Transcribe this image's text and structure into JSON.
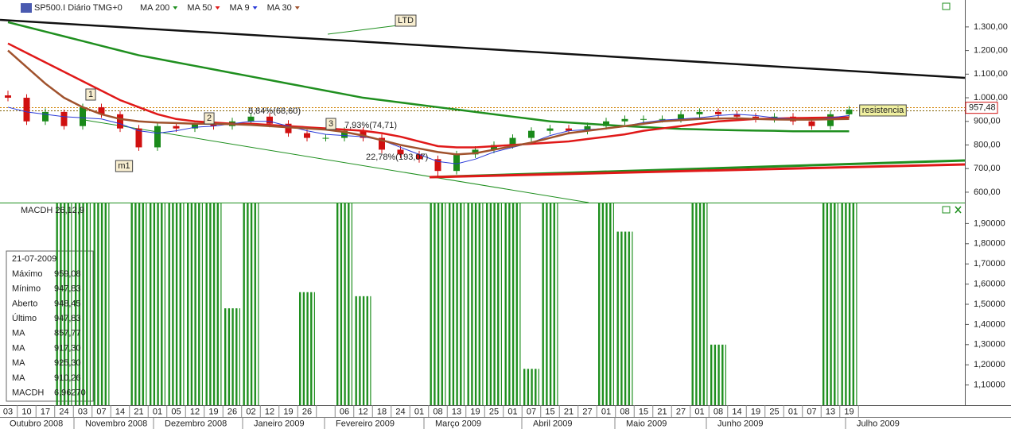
{
  "chart_data": [
    {
      "type": "candlestick",
      "title": "SP500.I Diário TMG+0",
      "grid": false,
      "categories": [
        "03",
        "10",
        "17",
        "24",
        "03",
        "07",
        "14",
        "21",
        "01",
        "05",
        "12",
        "19",
        "26",
        "02",
        "12",
        "19",
        "26",
        null,
        "06",
        "12",
        "18",
        "24",
        "01",
        "08",
        "13",
        "19",
        "25",
        "01",
        "07",
        "15",
        "21",
        "27",
        "01",
        "08",
        "15",
        "21",
        "27",
        "01",
        "08",
        "14",
        "19",
        "25",
        "01",
        "07",
        "13",
        "19"
      ],
      "months": [
        "Outubro 2008",
        "Novembro 2008",
        "Dezembro 2008",
        "Janeiro 2009",
        "Fevereiro 2009",
        "Março 2009",
        "Abril 2009",
        "Maio 2009",
        "Junho 2009",
        "Julho 2009"
      ],
      "open": [
        1010,
        1000,
        900,
        940,
        880,
        960,
        930,
        870,
        790,
        880,
        870,
        890,
        880,
        900,
        920,
        890,
        850,
        830,
        830,
        860,
        830,
        780,
        760,
        740,
        690,
        760,
        780,
        800,
        830,
        860,
        870,
        860,
        880,
        900,
        910,
        910,
        910,
        930,
        940,
        930,
        920,
        910,
        920,
        900,
        880,
        930
      ],
      "high": [
        1030,
        1015,
        955,
        950,
        975,
        975,
        945,
        885,
        895,
        895,
        895,
        905,
        915,
        935,
        935,
        905,
        865,
        845,
        875,
        875,
        845,
        795,
        775,
        755,
        775,
        795,
        815,
        845,
        875,
        885,
        885,
        895,
        915,
        925,
        925,
        925,
        945,
        955,
        955,
        945,
        935,
        935,
        935,
        915,
        945,
        965
      ],
      "low": [
        985,
        885,
        885,
        865,
        865,
        915,
        855,
        775,
        775,
        855,
        855,
        865,
        865,
        885,
        875,
        835,
        815,
        815,
        815,
        815,
        765,
        745,
        725,
        665,
        675,
        745,
        765,
        785,
        815,
        845,
        845,
        845,
        865,
        885,
        895,
        895,
        895,
        915,
        915,
        905,
        895,
        895,
        885,
        865,
        865,
        915
      ],
      "close": [
        1000,
        900,
        940,
        880,
        960,
        930,
        870,
        790,
        880,
        870,
        890,
        880,
        900,
        920,
        890,
        850,
        830,
        830,
        860,
        830,
        780,
        760,
        740,
        690,
        760,
        780,
        800,
        830,
        860,
        870,
        860,
        880,
        900,
        910,
        910,
        910,
        930,
        940,
        930,
        920,
        910,
        920,
        900,
        880,
        930,
        950
      ],
      "up_color": "#1a8a1a",
      "down_color": "#d01010",
      "series": [
        {
          "name": "MA 200",
          "color": "#1f8f1f",
          "values": [
            1320,
            1300,
            1280,
            1260,
            1240,
            1220,
            1200,
            1180,
            1165,
            1150,
            1135,
            1120,
            1105,
            1090,
            1075,
            1060,
            1045,
            1030,
            1015,
            1000,
            990,
            980,
            970,
            960,
            950,
            940,
            930,
            920,
            910,
            900,
            895,
            890,
            885,
            880,
            876,
            872,
            868,
            866,
            864,
            862,
            861,
            860,
            858,
            858,
            858,
            858
          ]
        },
        {
          "name": "MA 50",
          "color": "#e01818",
          "values": [
            1230,
            1190,
            1150,
            1110,
            1070,
            1030,
            990,
            960,
            930,
            910,
            900,
            895,
            890,
            890,
            885,
            880,
            875,
            870,
            865,
            860,
            850,
            835,
            815,
            795,
            790,
            790,
            795,
            800,
            805,
            810,
            815,
            825,
            835,
            845,
            860,
            870,
            880,
            890,
            900,
            905,
            910,
            912,
            914,
            915,
            916,
            917
          ]
        },
        {
          "name": "MA 9",
          "color": "#2a3ad8",
          "values": [
            960,
            940,
            930,
            920,
            915,
            910,
            890,
            860,
            850,
            860,
            875,
            880,
            890,
            900,
            900,
            880,
            860,
            845,
            840,
            835,
            820,
            790,
            760,
            730,
            720,
            740,
            770,
            790,
            810,
            840,
            860,
            865,
            870,
            880,
            895,
            905,
            910,
            915,
            925,
            930,
            925,
            915,
            910,
            905,
            915,
            925
          ]
        },
        {
          "name": "MA 30",
          "color": "#a0522d",
          "values": [
            1200,
            1130,
            1060,
            1000,
            960,
            930,
            910,
            900,
            895,
            893,
            890,
            890,
            888,
            885,
            880,
            875,
            870,
            865,
            855,
            840,
            820,
            800,
            785,
            770,
            760,
            765,
            780,
            795,
            810,
            830,
            850,
            860,
            870,
            880,
            890,
            900,
            905,
            910,
            912,
            913,
            910,
            908,
            907,
            907,
            909,
            910
          ]
        }
      ],
      "ylim": [
        556,
        1414
      ],
      "yticks": [
        {
          "value": 600,
          "label": "600,00"
        },
        {
          "value": 700,
          "label": "700,00"
        },
        {
          "value": 800,
          "label": "800,00"
        },
        {
          "value": 900,
          "label": "900,00"
        },
        {
          "value": 1000,
          "label": "1.000,00"
        },
        {
          "value": 1100,
          "label": "1.100,00"
        },
        {
          "value": 1200,
          "label": "1.200,00"
        },
        {
          "value": 1300,
          "label": "1.300,00"
        }
      ],
      "last_price": {
        "value": 957.48,
        "label": "957,48"
      },
      "annotations": [
        "LTD",
        "1",
        "2",
        "3",
        "m1",
        "8,84%(68,60)",
        "7,93%(74,71)",
        "22,78%(193,07)",
        "resistencia"
      ]
    },
    {
      "type": "bar",
      "title": "MACDH 26,12,9",
      "color": "#1f8f1f",
      "values": [
        null,
        null,
        null,
        2.0,
        2.0,
        2.0,
        null,
        2.0,
        2.0,
        2.0,
        2.0,
        2.0,
        1.48,
        2.0,
        null,
        null,
        1.56,
        null,
        2.0,
        1.54,
        null,
        null,
        null,
        2.0,
        2.0,
        2.0,
        2.0,
        2.0,
        1.18,
        2.0,
        null,
        null,
        2.0,
        1.86,
        null,
        null,
        null,
        2.0,
        1.3,
        null,
        null,
        null,
        null,
        null,
        2.0,
        2.0
      ],
      "ylim": [
        1.0,
        2.0
      ],
      "yticks": [
        {
          "value": 1.1,
          "label": "1,10000"
        },
        {
          "value": 1.2,
          "label": "1,20000"
        },
        {
          "value": 1.3,
          "label": "1,30000"
        },
        {
          "value": 1.4,
          "label": "1,40000"
        },
        {
          "value": 1.5,
          "label": "1,50000"
        },
        {
          "value": 1.6,
          "label": "1,60000"
        },
        {
          "value": 1.7,
          "label": "1,70000"
        },
        {
          "value": 1.8,
          "label": "1,80000"
        },
        {
          "value": 1.9,
          "label": "1,90000"
        }
      ]
    }
  ],
  "info_panel": {
    "date": "21-07-2009",
    "rows": [
      {
        "label": "Máximo",
        "value": "959,08",
        "color": "#000000"
      },
      {
        "label": "Mínimo",
        "value": "947,83",
        "color": "#000000"
      },
      {
        "label": "Aberto",
        "value": "948,45",
        "color": "#000000"
      },
      {
        "label": "Último",
        "value": "947,83",
        "color": "#d01010"
      },
      {
        "label": "MA",
        "value": "857,77",
        "color": "#1f8f1f"
      },
      {
        "label": "MA",
        "value": "917,30",
        "color": "#e01818"
      },
      {
        "label": "MA",
        "value": "925,30",
        "color": "#2a3ad8"
      },
      {
        "label": "MA",
        "value": "910,26",
        "color": "#a0522d"
      },
      {
        "label": "MACDH",
        "value": "6,96270",
        "color": "#1f8f1f"
      }
    ]
  }
}
